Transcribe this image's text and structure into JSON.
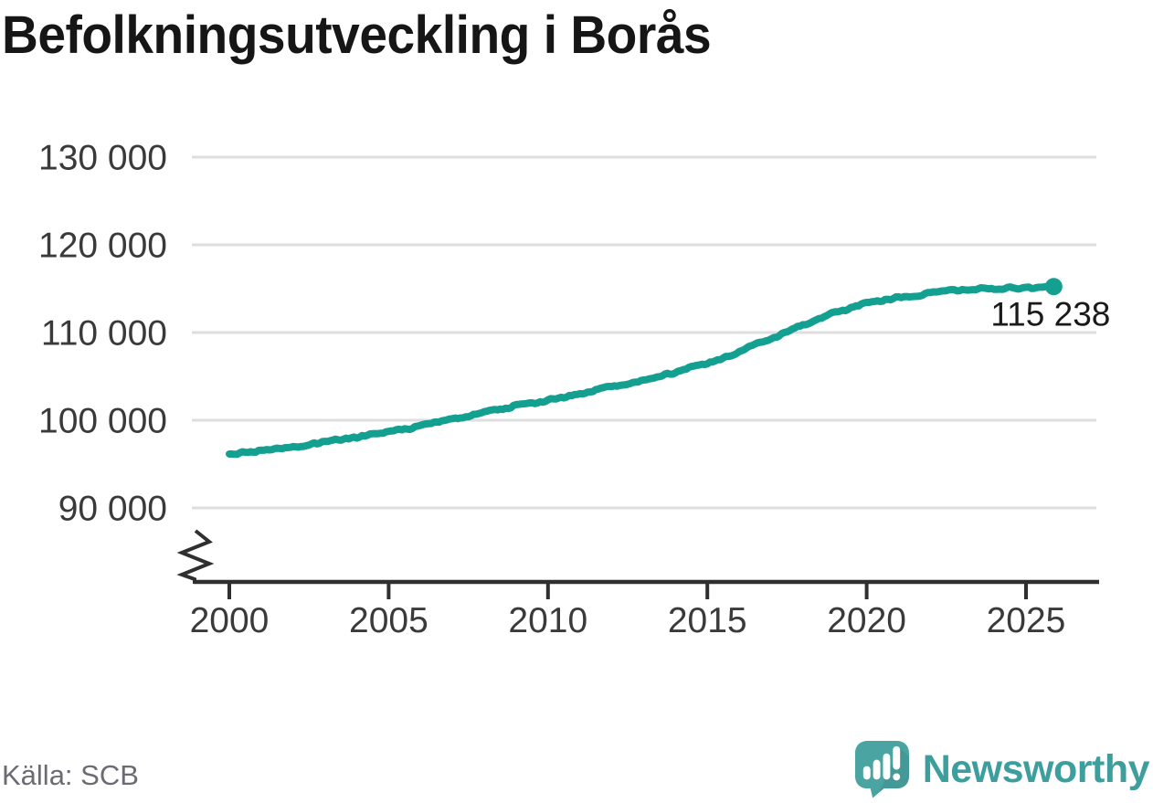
{
  "chart_data": {
    "type": "line",
    "title": "Befolkningsutveckling i Borås",
    "source": "Källa: SCB",
    "grid": "horizontal",
    "legend": "none",
    "axis_break": true,
    "xlim": [
      1998.9,
      2027.3
    ],
    "ylim": [
      90000,
      130000
    ],
    "x_ticks": [
      2000,
      2005,
      2010,
      2015,
      2020,
      2025
    ],
    "y_ticks": [
      {
        "value": 130000,
        "label": "130 000"
      },
      {
        "value": 120000,
        "label": "120 000"
      },
      {
        "value": 110000,
        "label": "110 000"
      },
      {
        "value": 100000,
        "label": "100 000"
      },
      {
        "value": 90000,
        "label": "90 000"
      }
    ],
    "series": [
      {
        "color": "#14a090",
        "points": [
          [
            2000,
            96150
          ],
          [
            2001,
            96500
          ],
          [
            2002,
            96900
          ],
          [
            2003,
            97600
          ],
          [
            2004,
            98100
          ],
          [
            2005,
            98650
          ],
          [
            2006,
            99300
          ],
          [
            2007,
            100100
          ],
          [
            2008,
            100900
          ],
          [
            2009,
            101600
          ],
          [
            2010,
            102300
          ],
          [
            2011,
            103000
          ],
          [
            2012,
            103800
          ],
          [
            2013,
            104600
          ],
          [
            2014,
            105500
          ],
          [
            2015,
            106500
          ],
          [
            2016,
            107800
          ],
          [
            2017,
            109300
          ],
          [
            2018,
            110900
          ],
          [
            2019,
            112300
          ],
          [
            2020,
            113300
          ],
          [
            2021,
            114000
          ],
          [
            2022,
            114500
          ],
          [
            2023,
            114850
          ],
          [
            2024,
            115050
          ],
          [
            2025,
            115150
          ],
          [
            2025.87,
            115238
          ]
        ]
      }
    ],
    "annotation": {
      "label": "115 238",
      "value": 115238,
      "x": 2025.87
    }
  },
  "footer": {
    "brand_name": "Newsworthy"
  },
  "colors": {
    "line": "#14a090",
    "grid": "#dedede",
    "axis": "#2f2f2f",
    "tick_text": "#3a3a3a",
    "title_text": "#161616",
    "annotation_text": "#1a1a1a",
    "source_text": "#6b6b73",
    "brand_teal": "#3d9f9d",
    "logo_bubble": "#4aa5a2"
  }
}
